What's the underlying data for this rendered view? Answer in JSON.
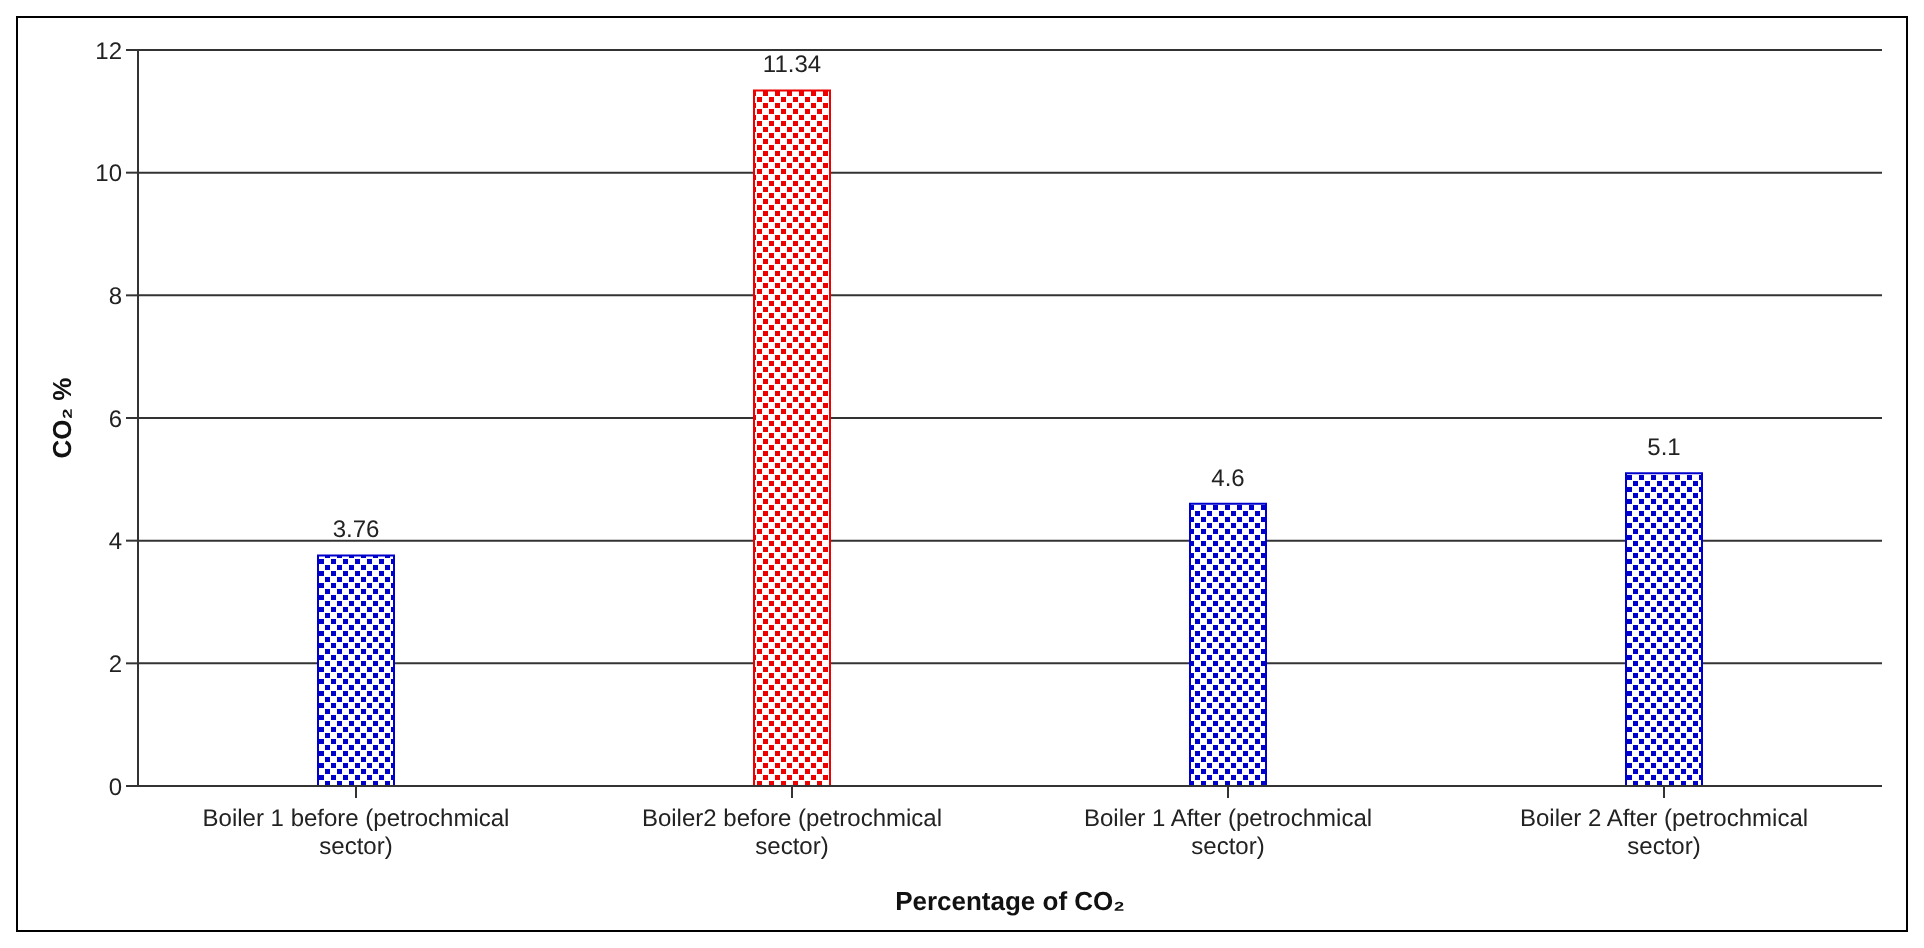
{
  "chart_data": {
    "type": "bar",
    "xlabel": "Percentage of CO₂",
    "ylabel": "CO₂ %",
    "categories": [
      "Boiler 1 before (petrochmical sector)",
      "Boiler2 before (petrochmical sector)",
      "Boiler 1 After (petrochmical sector)",
      "Boiler 2 After (petrochmical sector)"
    ],
    "values": [
      3.76,
      11.34,
      4.6,
      5.1
    ],
    "colors": [
      "#0000cc",
      "#ee0000",
      "#0000cc",
      "#0000cc"
    ],
    "ylim": [
      0,
      12
    ],
    "yticks": [
      0,
      2,
      4,
      6,
      8,
      10,
      12
    ],
    "grid": "y",
    "data_labels": true,
    "legend": false
  }
}
